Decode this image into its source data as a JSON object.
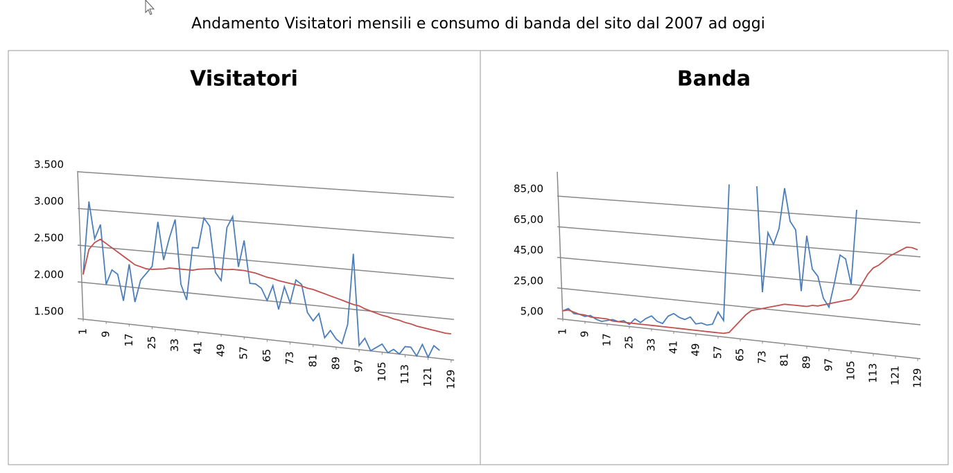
{
  "title": "Andamento Visitatori mensili e consumo di banda del sito dal 2007 ad oggi",
  "chart_data": [
    {
      "type": "line",
      "title": "Visitatori",
      "x": [
        1,
        3,
        5,
        7,
        9,
        11,
        13,
        15,
        17,
        19,
        21,
        23,
        25,
        27,
        29,
        31,
        33,
        35,
        37,
        39,
        41,
        43,
        45,
        47,
        49,
        51,
        53,
        55,
        57,
        59,
        61,
        63,
        65,
        67,
        69,
        71,
        73,
        75,
        77,
        79,
        81,
        83,
        85,
        87,
        89,
        91,
        93,
        95,
        97,
        99,
        101,
        103,
        105,
        107,
        109,
        111,
        113,
        115,
        117,
        119,
        121,
        123,
        125,
        127,
        129
      ],
      "xlim": [
        1,
        130
      ],
      "xticks": [
        1,
        9,
        17,
        25,
        33,
        41,
        49,
        57,
        65,
        73,
        81,
        89,
        97,
        105,
        113,
        121,
        129
      ],
      "ylim": [
        1500,
        3500
      ],
      "yticks": [
        {
          "value": 1500,
          "label": "1.500"
        },
        {
          "value": 2000,
          "label": "2.000"
        },
        {
          "value": 2500,
          "label": "2.500"
        },
        {
          "value": 3000,
          "label": "3.000"
        },
        {
          "value": 3500,
          "label": "3.500"
        }
      ],
      "grid": true,
      "series": [
        {
          "color": "#4a7ebb",
          "values": [
            2100,
            3100,
            2600,
            2800,
            2000,
            2200,
            2150,
            1800,
            2300,
            1800,
            2100,
            2200,
            2300,
            2900,
            2400,
            2700,
            2950,
            2100,
            1900,
            2600,
            2600,
            3000,
            2900,
            2300,
            2200,
            2900,
            3050,
            2400,
            2750,
            2200,
            2200,
            2150,
            2000,
            2200,
            1900,
            2200,
            2000,
            2300,
            2250,
            1900,
            1800,
            1900,
            1600,
            1700,
            1600,
            1550,
            1800,
            2700,
            1550,
            1650,
            1500,
            1550,
            1600,
            1500,
            1550,
            1500,
            1600,
            1600,
            1500,
            1650,
            1500,
            1650,
            1600,
            null,
            null
          ]
        },
        {
          "color": "#c0504d",
          "values": [
            2100,
            2450,
            2550,
            2600,
            2550,
            2500,
            2450,
            2400,
            2350,
            2300,
            2280,
            2260,
            2260,
            2270,
            2280,
            2300,
            2300,
            2300,
            2300,
            2300,
            2320,
            2330,
            2340,
            2350,
            2350,
            2350,
            2360,
            2360,
            2360,
            2350,
            2340,
            2320,
            2300,
            2290,
            2270,
            2260,
            2250,
            2240,
            2230,
            2210,
            2200,
            2180,
            2160,
            2140,
            2120,
            2100,
            2080,
            2060,
            2050,
            2020,
            2000,
            1980,
            1960,
            1950,
            1930,
            1920,
            1900,
            1890,
            1870,
            1860,
            1850,
            1840,
            1830,
            1820,
            1820
          ]
        }
      ]
    },
    {
      "type": "line",
      "title": "Banda",
      "x": [
        1,
        3,
        5,
        7,
        9,
        11,
        13,
        15,
        17,
        19,
        21,
        23,
        25,
        27,
        29,
        31,
        33,
        35,
        37,
        39,
        41,
        43,
        45,
        47,
        49,
        51,
        53,
        55,
        57,
        59,
        61,
        63,
        65,
        67,
        69,
        71,
        73,
        75,
        77,
        79,
        81,
        83,
        85,
        87,
        89,
        91,
        93,
        95,
        97,
        99,
        101,
        103,
        105,
        107,
        109,
        111,
        113,
        115,
        117,
        119,
        121,
        123,
        125,
        127,
        129
      ],
      "xlim": [
        1,
        130
      ],
      "xticks": [
        1,
        9,
        17,
        25,
        33,
        41,
        49,
        57,
        65,
        73,
        81,
        89,
        97,
        105,
        113,
        121,
        129
      ],
      "ylim": [
        5,
        100
      ],
      "yticks": [
        {
          "value": 5,
          "label": "5,00"
        },
        {
          "value": 25,
          "label": "25,00"
        },
        {
          "value": 45,
          "label": "45,00"
        },
        {
          "value": 65,
          "label": "65,00"
        },
        {
          "value": 85,
          "label": "85,00"
        }
      ],
      "grid": true,
      "series": [
        {
          "color": "#4a7ebb",
          "values": [
            10,
            12,
            9,
            9,
            8,
            9,
            7,
            6,
            7,
            8,
            7,
            8,
            6,
            10,
            8,
            11,
            13,
            10,
            9,
            14,
            16,
            14,
            13,
            15,
            11,
            12,
            11,
            12,
            20,
            15,
            100,
            null,
            null,
            null,
            null,
            100,
            35,
            72,
            65,
            75,
            100,
            80,
            75,
            38,
            72,
            52,
            48,
            35,
            30,
            45,
            62,
            60,
            45,
            90,
            null,
            null,
            null,
            null,
            null,
            null,
            null,
            null,
            null,
            null,
            null
          ]
        },
        {
          "color": "#c0504d",
          "values": [
            10,
            11,
            10,
            9,
            9,
            8,
            8,
            8,
            8,
            7,
            7,
            7,
            7,
            7,
            7,
            7,
            7,
            7,
            7,
            7,
            7,
            7,
            7,
            7,
            7,
            7,
            7,
            7,
            7,
            7,
            8,
            12,
            16,
            20,
            23,
            24,
            25,
            26,
            27,
            28,
            29,
            29,
            29,
            29,
            29,
            30,
            30,
            31,
            32,
            33,
            34,
            35,
            36,
            40,
            46,
            52,
            56,
            58,
            61,
            64,
            66,
            68,
            70,
            70,
            69
          ]
        }
      ]
    }
  ]
}
